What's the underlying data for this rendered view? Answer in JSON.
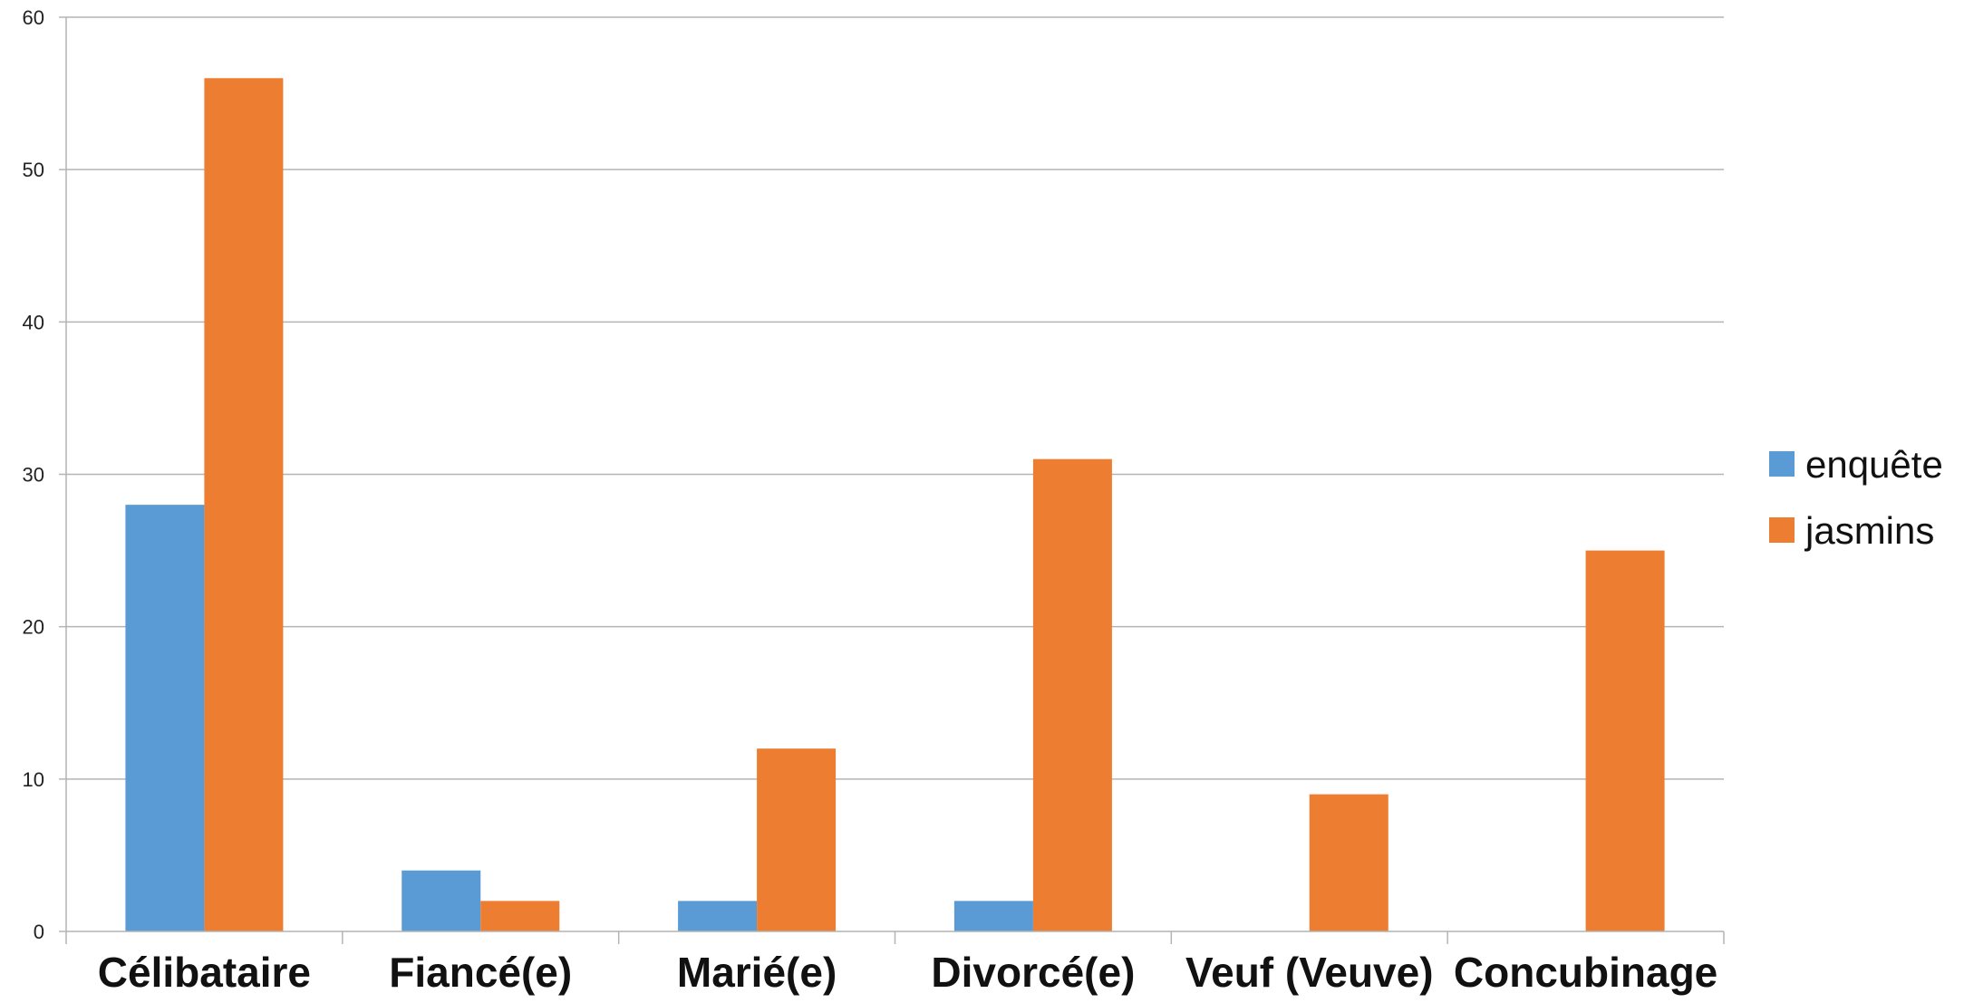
{
  "chart_data": {
    "type": "bar",
    "categories": [
      "Célibataire",
      "Fiancé(e)",
      "Marié(e)",
      "Divorcé(e)",
      "Veuf (Veuve)",
      "Concubinage"
    ],
    "series": [
      {
        "name": "enquête",
        "values": [
          28,
          4,
          2,
          2,
          0,
          0
        ],
        "color": "#5b9bd5"
      },
      {
        "name": "jasmins",
        "values": [
          56,
          2,
          12,
          31,
          9,
          25
        ],
        "color": "#ed7d31"
      }
    ],
    "title": "",
    "xlabel": "",
    "ylabel": "",
    "ylim": [
      0,
      60
    ],
    "yticks": [
      0,
      10,
      20,
      30,
      40,
      50,
      60
    ],
    "grid": true,
    "legend": "right"
  }
}
